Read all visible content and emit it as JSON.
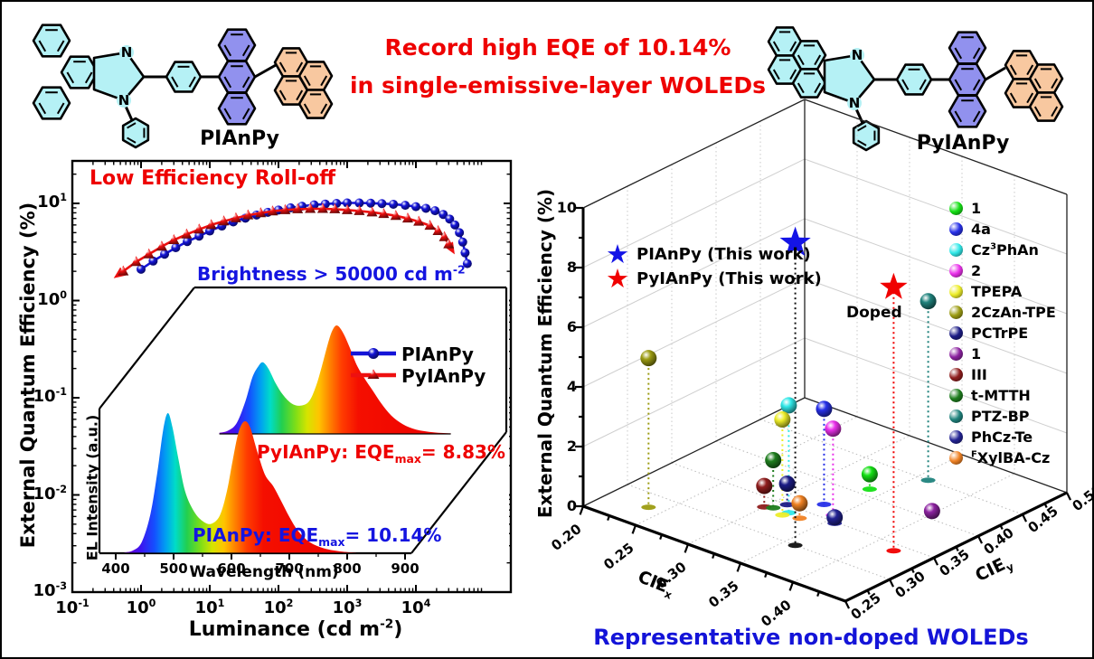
{
  "header": {
    "headline_line1": "Record high EQE of 10.14%",
    "headline_line2": "in single-emissive-layer WOLEDs",
    "headline_color": "#ee0000",
    "molecule_left_label": "PIAnPy",
    "molecule_right_label": "PyIAnPy"
  },
  "eqe_chart": {
    "annotation_rolloff": "Low Efficiency Roll-off",
    "annotation_brightness": "Brightness > 50000 cd m^-2^",
    "xlabel": "Luminance (cd m^-2^)",
    "ylabel": "External Quantum Efficiency (%)",
    "x_tick_labels": [
      "10^-1^",
      "10^0^",
      "10^1^",
      "10^2^",
      "10^3^",
      "10^4^"
    ],
    "y_tick_labels": [
      "10^1^",
      "10^0^",
      "10^-1^",
      "10^-2^",
      "10^-3^"
    ],
    "chart_data": {
      "type": "line",
      "x_axis": {
        "label": "Luminance (cd m-2)",
        "scale": "log",
        "range": [
          0.1,
          90000
        ]
      },
      "y_axis": {
        "label": "External Quantum Efficiency (%)",
        "scale": "log",
        "range": [
          0.001,
          30
        ]
      },
      "series": [
        {
          "name": "PIAnPy",
          "color": "#1414d8",
          "marker": "circle",
          "points": [
            [
              1,
              2.1
            ],
            [
              1.5,
              2.55
            ],
            [
              2.2,
              3.0
            ],
            [
              3.2,
              3.5
            ],
            [
              4.7,
              4.05
            ],
            [
              7,
              4.6
            ],
            [
              10,
              5.2
            ],
            [
              15,
              5.85
            ],
            [
              22,
              6.45
            ],
            [
              33,
              7.05
            ],
            [
              48,
              7.6
            ],
            [
              70,
              8.1
            ],
            [
              100,
              8.55
            ],
            [
              150,
              9.0
            ],
            [
              220,
              9.35
            ],
            [
              330,
              9.65
            ],
            [
              480,
              9.85
            ],
            [
              700,
              10.0
            ],
            [
              1000,
              10.1
            ],
            [
              1500,
              10.1
            ],
            [
              2200,
              10.05
            ],
            [
              3200,
              9.95
            ],
            [
              4700,
              9.8
            ],
            [
              7000,
              9.55
            ],
            [
              10000,
              9.25
            ],
            [
              14000,
              8.9
            ],
            [
              19000,
              8.4
            ],
            [
              25000,
              7.7
            ],
            [
              31000,
              6.9
            ],
            [
              37000,
              6.0
            ],
            [
              43000,
              5.0
            ],
            [
              48000,
              4.0
            ],
            [
              52000,
              3.1
            ],
            [
              56000,
              2.4
            ]
          ]
        },
        {
          "name": "PyIAnPy",
          "color": "#ee1010",
          "marker": "triangle",
          "points": [
            [
              0.55,
              2.0
            ],
            [
              0.85,
              2.5
            ],
            [
              1.3,
              3.0
            ],
            [
              2,
              3.6
            ],
            [
              3,
              4.2
            ],
            [
              4.6,
              4.8
            ],
            [
              7,
              5.4
            ],
            [
              10.5,
              6.0
            ],
            [
              16,
              6.55
            ],
            [
              24,
              7.05
            ],
            [
              36,
              7.55
            ],
            [
              55,
              7.95
            ],
            [
              82,
              8.3
            ],
            [
              125,
              8.55
            ],
            [
              190,
              8.72
            ],
            [
              290,
              8.8
            ],
            [
              440,
              8.8
            ],
            [
              660,
              8.72
            ],
            [
              1000,
              8.55
            ],
            [
              1500,
              8.35
            ],
            [
              2300,
              8.1
            ],
            [
              3400,
              7.8
            ],
            [
              5100,
              7.45
            ],
            [
              7600,
              7.0
            ],
            [
              11000,
              6.5
            ],
            [
              16000,
              5.9
            ],
            [
              21000,
              5.2
            ],
            [
              26000,
              4.5
            ],
            [
              30000,
              3.8
            ]
          ]
        }
      ]
    }
  },
  "el_inset": {
    "xlabel": "Wavelength (nm)",
    "ylabel": "EL Intensity (a.u.)",
    "x_tick_labels": [
      "400",
      "500",
      "600",
      "700",
      "800",
      "900"
    ],
    "legend": [
      {
        "label": "PIAnPy",
        "color": "#1414d8",
        "marker": "circle"
      },
      {
        "label": "PyIAnPy",
        "color": "#ee1010",
        "marker": "triangle"
      }
    ],
    "back_label": "PyIAnPy: EQE_max_= 8.83%",
    "front_label": "PIAnPy: EQE_max_= 10.14%",
    "chart_data": {
      "type": "area",
      "x_axis": {
        "label": "Wavelength (nm)",
        "range": [
          400,
          900
        ]
      },
      "y_axis": {
        "label": "EL Intensity (a.u.)"
      },
      "series": [
        {
          "name": "PIAnPy",
          "eqe_max_percent": 10.14,
          "position": "front",
          "points": [
            [
              415,
              0.005
            ],
            [
              430,
              0.02
            ],
            [
              445,
              0.08
            ],
            [
              460,
              0.28
            ],
            [
              472,
              0.58
            ],
            [
              482,
              0.88
            ],
            [
              490,
              1.0
            ],
            [
              498,
              0.9
            ],
            [
              508,
              0.68
            ],
            [
              520,
              0.44
            ],
            [
              535,
              0.3
            ],
            [
              550,
              0.23
            ],
            [
              565,
              0.21
            ],
            [
              580,
              0.27
            ],
            [
              592,
              0.44
            ],
            [
              602,
              0.66
            ],
            [
              612,
              0.86
            ],
            [
              622,
              0.94
            ],
            [
              632,
              0.9
            ],
            [
              645,
              0.72
            ],
            [
              658,
              0.56
            ],
            [
              672,
              0.48
            ],
            [
              685,
              0.38
            ],
            [
              700,
              0.26
            ],
            [
              715,
              0.16
            ],
            [
              735,
              0.08
            ],
            [
              760,
              0.035
            ],
            [
              790,
              0.012
            ],
            [
              815,
              0.004
            ]
          ]
        },
        {
          "name": "PyIAnPy",
          "eqe_max_percent": 8.83,
          "position": "back",
          "points": [
            [
              415,
              0.01
            ],
            [
              430,
              0.03
            ],
            [
              445,
              0.1
            ],
            [
              460,
              0.3
            ],
            [
              472,
              0.52
            ],
            [
              482,
              0.62
            ],
            [
              490,
              0.66
            ],
            [
              500,
              0.6
            ],
            [
              512,
              0.47
            ],
            [
              525,
              0.36
            ],
            [
              540,
              0.28
            ],
            [
              555,
              0.26
            ],
            [
              570,
              0.3
            ],
            [
              582,
              0.44
            ],
            [
              592,
              0.62
            ],
            [
              602,
              0.82
            ],
            [
              610,
              0.95
            ],
            [
              618,
              1.0
            ],
            [
              628,
              0.94
            ],
            [
              640,
              0.8
            ],
            [
              652,
              0.64
            ],
            [
              665,
              0.52
            ],
            [
              680,
              0.4
            ],
            [
              695,
              0.28
            ],
            [
              712,
              0.17
            ],
            [
              732,
              0.09
            ],
            [
              755,
              0.04
            ],
            [
              785,
              0.015
            ],
            [
              815,
              0.005
            ]
          ]
        }
      ]
    }
  },
  "cie_chart": {
    "ylabel": "External Quantum Efficiency (%)",
    "xlabel_front": "CIE_x_",
    "xlabel_side": "CIE_y_",
    "y_tick_labels": [
      "0",
      "2",
      "4",
      "6",
      "8",
      "10"
    ],
    "front_tick_labels": [
      "0.20",
      "0.25",
      "0.30",
      "0.35",
      "0.40"
    ],
    "side_tick_labels": [
      "0.25",
      "0.30",
      "0.35",
      "0.40",
      "0.45",
      "0.50"
    ],
    "doped_annotation": "Doped",
    "caption": "Representative non-doped WOLEDs",
    "caption_color": "#1414d8",
    "star_legend": [
      {
        "label": "PIAnPy (This work)",
        "color": "#1414e6"
      },
      {
        "label": "PyIAnPy (This work)",
        "color": "#f00000"
      }
    ],
    "legend_items": [
      {
        "label": "1",
        "color": "#15e015"
      },
      {
        "label": "4a",
        "color": "#2730e8"
      },
      {
        "label": "Cz^3^PhAn",
        "color": "#30e8e8"
      },
      {
        "label": "2",
        "color": "#ea30ea"
      },
      {
        "label": "TPEPA",
        "color": "#eded2a"
      },
      {
        "label": "2CzAn-TPE",
        "color": "#9c9c12"
      },
      {
        "label": "PCTrPE",
        "color": "#1c1c86"
      },
      {
        "label": "1",
        "color": "#8c22a0"
      },
      {
        "label": "III",
        "color": "#8f1d1d"
      },
      {
        "label": "t-MTTH",
        "color": "#1e7d1e"
      },
      {
        "label": "PTZ-BP",
        "color": "#20837d"
      },
      {
        "label": "PhCz-Te",
        "color": "#232394"
      },
      {
        "label": "^F^XylBA-Cz",
        "color": "#f08224"
      }
    ],
    "chart_data": {
      "type": "scatter",
      "axes": {
        "x": "CIE x",
        "y": "CIE y",
        "z": "External Quantum Efficiency (%)",
        "x_range": [
          0.2,
          0.45
        ],
        "y_range": [
          0.25,
          0.5
        ],
        "z_range": [
          0,
          10
        ]
      },
      "stars": [
        {
          "name": "PIAnPy (This work)",
          "color": "#1414e6",
          "x": 0.36,
          "y": 0.3,
          "eqe": 10.14,
          "stem_color": "#111111",
          "size": 18
        },
        {
          "name": "PyIAnPy (This work)",
          "color": "#f00000",
          "x": 0.42,
          "y": 0.34,
          "eqe": 8.83,
          "stem_color": "#f00000",
          "size": 16
        }
      ],
      "points": [
        {
          "label": "1",
          "color": "#15e015",
          "x": 0.338,
          "y": 0.41,
          "eqe": 0.5
        },
        {
          "label": "4a",
          "color": "#2730e8",
          "x": 0.33,
          "y": 0.368,
          "eqe": 3.2
        },
        {
          "label": "Cz3PhAn",
          "color": "#30e8e8",
          "x": 0.32,
          "y": 0.34,
          "eqe": 3.6
        },
        {
          "label": "2",
          "color": "#ea30ea",
          "x": 0.347,
          "y": 0.358,
          "eqe": 2.9
        },
        {
          "label": "TPEPA",
          "color": "#eded2a",
          "x": 0.319,
          "y": 0.334,
          "eqe": 3.2
        },
        {
          "label": "2CzAn-TPE",
          "color": "#9c9c12",
          "x": 0.237,
          "y": 0.28,
          "eqe": 5.0
        },
        {
          "label": "PCTrPE",
          "color": "#1c1c86",
          "x": 0.31,
          "y": 0.35,
          "eqe": 0.7
        },
        {
          "label": "1",
          "color": "#8c22a0",
          "x": 0.4,
          "y": 0.407,
          "eqe": 0.1
        },
        {
          "label": "III",
          "color": "#8f1d1d",
          "x": 0.3,
          "y": 0.336,
          "eqe": 0.7
        },
        {
          "label": "t-MTTH",
          "color": "#1e7d1e",
          "x": 0.306,
          "y": 0.339,
          "eqe": 1.6
        },
        {
          "label": "PTZ-BP",
          "color": "#20837d",
          "x": 0.36,
          "y": 0.45,
          "eqe": 6.0,
          "annotation": "Doped"
        },
        {
          "label": "PhCz-Te",
          "color": "#232394",
          "x": 0.357,
          "y": 0.348,
          "eqe": 0.2
        },
        {
          "label": "FXylBA-Cz",
          "color": "#f08224",
          "x": 0.332,
          "y": 0.338,
          "eqe": 0.5
        }
      ]
    }
  }
}
